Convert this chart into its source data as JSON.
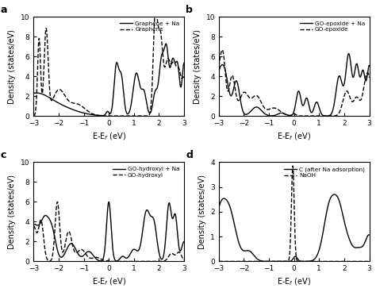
{
  "panels": [
    {
      "label": "a",
      "legend": [
        "Graphene + Na",
        "Graphene"
      ],
      "ylim": [
        0,
        10
      ],
      "yticks": [
        0,
        2,
        4,
        6,
        8,
        10
      ],
      "ylabel": "Density (states/eV)",
      "xlabel": "E-E$_f$ (eV)"
    },
    {
      "label": "b",
      "legend": [
        "GO-epoxide + Na",
        "GO-epoxide"
      ],
      "ylim": [
        0,
        10
      ],
      "yticks": [
        0,
        2,
        4,
        6,
        8,
        10
      ],
      "ylabel": "Density (states/eV)",
      "xlabel": "E-E$_f$ (eV)"
    },
    {
      "label": "c",
      "legend": [
        "GO-hydroxyl + Na",
        "GO-hydroxyl"
      ],
      "ylim": [
        0,
        10
      ],
      "yticks": [
        0,
        2,
        4,
        6,
        8,
        10
      ],
      "ylabel": "Density (states/eV)",
      "xlabel": "E-E$_f$ (eV)"
    },
    {
      "label": "d",
      "legend": [
        "C (after Na adsorption)",
        "NaOH"
      ],
      "ylim": [
        0,
        4
      ],
      "yticks": [
        0,
        1,
        2,
        3,
        4
      ],
      "ylabel": "Density (states/eV)",
      "xlabel": "E-E$_f$ (eV)"
    }
  ],
  "xlim": [
    -3,
    3
  ],
  "xticks": [
    -3,
    -2,
    -1,
    0,
    1,
    2,
    3
  ],
  "line_color": "black",
  "background": "white"
}
